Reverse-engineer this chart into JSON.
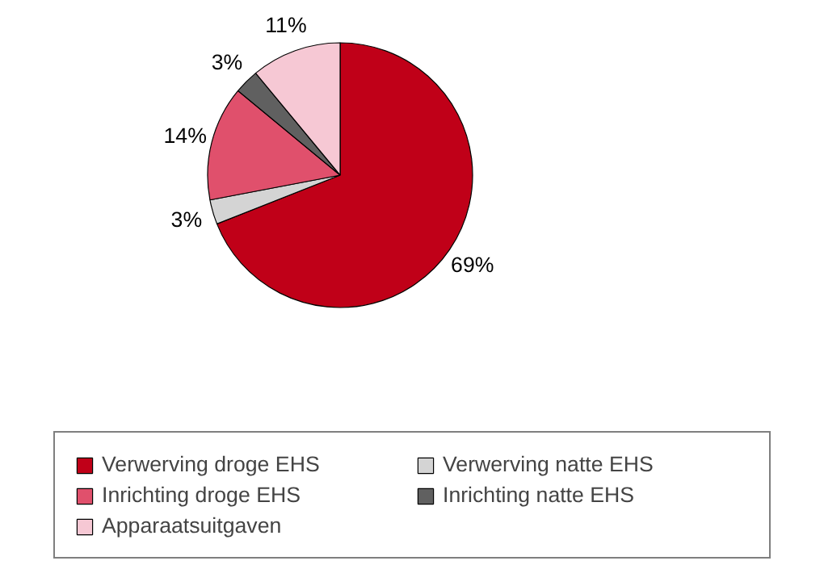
{
  "chart_data": {
    "type": "pie",
    "categories": [
      "Verwerving droge EHS",
      "Verwerving natte EHS",
      "Inrichting droge EHS",
      "Inrichting natte EHS",
      "Apparaatsuitgaven"
    ],
    "values": [
      69,
      3,
      14,
      3,
      11
    ],
    "colors": [
      "#c00018",
      "#d4d4d4",
      "#e0506c",
      "#606060",
      "#f6c8d4"
    ],
    "value_labels": [
      "69%",
      "3%",
      "14%",
      "3%",
      "11%"
    ],
    "legend": "bottom"
  }
}
